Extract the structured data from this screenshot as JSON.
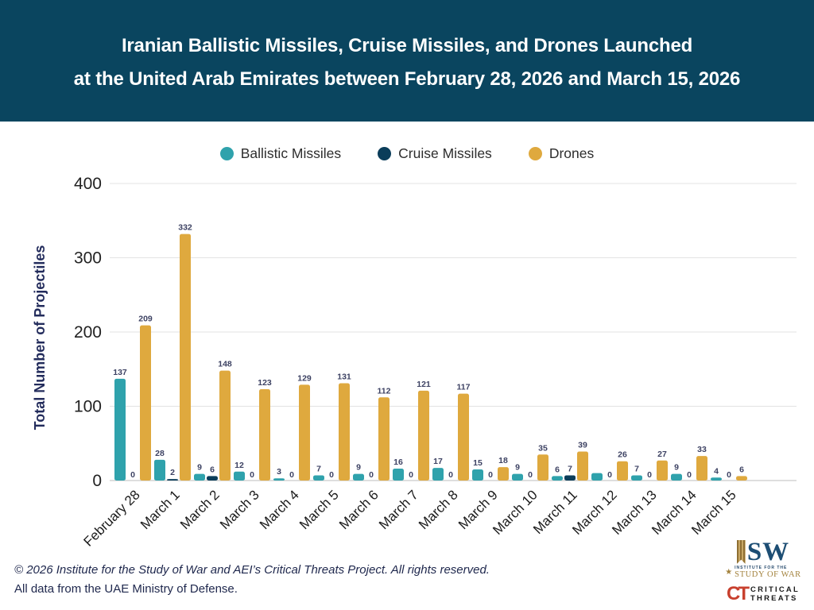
{
  "header": {
    "title_line1": "Iranian Ballistic Missiles, Cruise Missiles, and Drones Launched",
    "title_line2": "at the United Arab Emirates between February 28, 2026 and March 15, 2026",
    "background_color": "#0A455F",
    "text_color": "#FFFFFF"
  },
  "chart_data": {
    "type": "bar",
    "title": "",
    "categories": [
      "February 28",
      "March 1",
      "March 2",
      "March 3",
      "March 4",
      "March 5",
      "March 6",
      "March 7",
      "March 8",
      "March 9",
      "March 10",
      "March 11",
      "March 12",
      "March 13",
      "March 14",
      "March 15"
    ],
    "series": [
      {
        "name": "Ballistic Missiles",
        "color": "#2FA2AC",
        "values": [
          137,
          28,
          9,
          12,
          3,
          7,
          9,
          16,
          17,
          15,
          9,
          6,
          10,
          7,
          9,
          4
        ],
        "labels": [
          "137",
          "28",
          "9",
          "12",
          "3",
          "7",
          "9",
          "16",
          "17",
          "15",
          "9",
          "6",
          "",
          "7",
          "9",
          "4"
        ]
      },
      {
        "name": "Cruise Missiles",
        "color": "#0B3D5A",
        "values": [
          0,
          2,
          6,
          0,
          0,
          0,
          0,
          0,
          0,
          0,
          0,
          7,
          0,
          0,
          0,
          0
        ],
        "labels": [
          "0",
          "2",
          "6",
          "0",
          "0",
          "0",
          "0",
          "0",
          "0",
          "0",
          "0",
          "7",
          "0",
          "0",
          "0",
          "0"
        ]
      },
      {
        "name": "Drones",
        "color": "#DFA93E",
        "values": [
          209,
          332,
          148,
          123,
          129,
          131,
          112,
          121,
          117,
          18,
          35,
          39,
          26,
          27,
          33,
          6
        ],
        "labels": [
          "209",
          "332",
          "148",
          "123",
          "129",
          "131",
          "112",
          "121",
          "117",
          "18",
          "35",
          "39",
          "26",
          "27",
          "33",
          "6"
        ]
      }
    ],
    "xlabel": "",
    "ylabel": "Total Number of Projectiles",
    "yticks": [
      0,
      100,
      200,
      300,
      400
    ],
    "ylim": [
      0,
      400
    ],
    "grid": true,
    "legend_position": "top",
    "value_label_color": "#3D4263",
    "gridline_color": "#E3E3E3"
  },
  "footer": {
    "line1": "© 2026 Institute for the Study of War and AEI’s Critical Threats Project. All rights reserved.",
    "line2": "All data from the UAE Ministry of Defense."
  },
  "logos": {
    "isw": {
      "acronym_suffix": "SW",
      "sub_small": "INSTITUTE FOR THE",
      "sub_large": "STUDY OF WAR",
      "text_color": "#1D4E74",
      "gold_color": "#A3823D"
    },
    "critical_threats": {
      "monogram": "CT",
      "line1": "CRITICAL",
      "line2": "THREATS",
      "monogram_color": "#C8402E"
    }
  }
}
